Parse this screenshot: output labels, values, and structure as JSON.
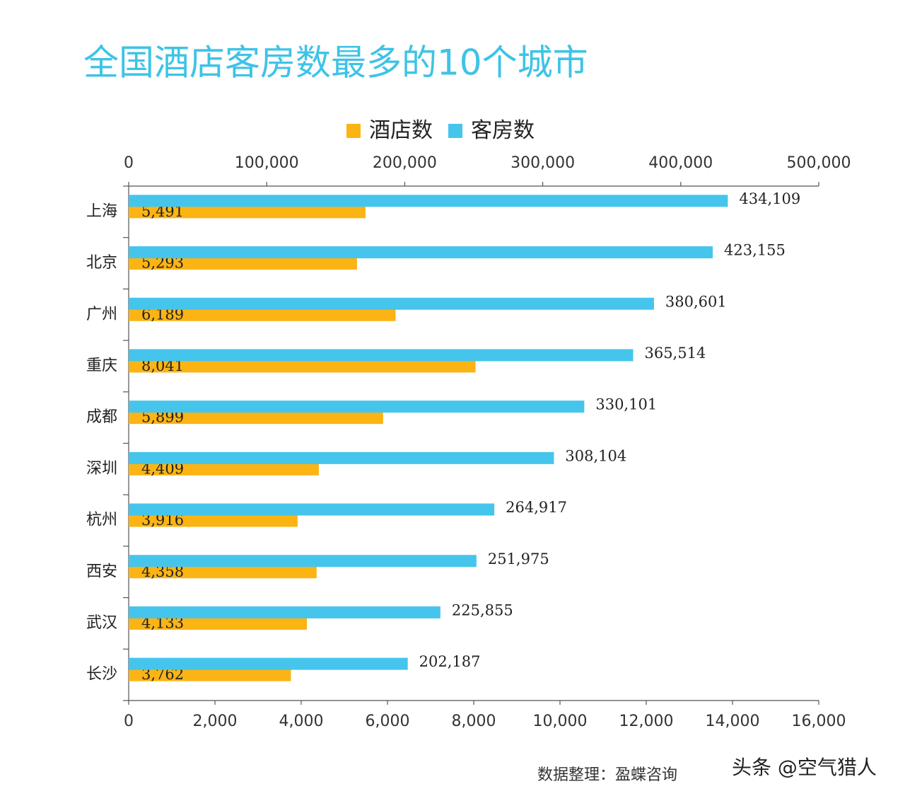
{
  "chart_data": {
    "type": "bar",
    "orientation": "horizontal",
    "title": "全国酒店客房数最多的10个城市",
    "categories": [
      "上海",
      "北京",
      "广州",
      "重庆",
      "成都",
      "深圳",
      "杭州",
      "西安",
      "武汉",
      "长沙"
    ],
    "series": [
      {
        "name": "酒店数",
        "color": "#fbb414",
        "axis": "x",
        "values": [
          5491,
          5293,
          6189,
          8041,
          5899,
          4409,
          3916,
          4358,
          4133,
          3762
        ],
        "value_labels": [
          "5,491",
          "5,293",
          "6,189",
          "8,041",
          "5,899",
          "4,409",
          "3,916",
          "4,358",
          "4,133",
          "3,762"
        ]
      },
      {
        "name": "客房数",
        "color": "#45c5ec",
        "axis": "x2",
        "values": [
          434109,
          423155,
          380601,
          365514,
          330101,
          308104,
          264917,
          251975,
          225855,
          202187
        ],
        "value_labels": [
          "434,109",
          "423,155",
          "380,601",
          "365,514",
          "330,101",
          "308,104",
          "264,917",
          "251,975",
          "225,855",
          "202,187"
        ]
      }
    ],
    "xlim": [
      0,
      16000
    ],
    "xticks": [
      0,
      {
        "value": 2000,
        "label": "2,000"
      },
      {
        "value": 4000,
        "label": "4,000"
      },
      {
        "value": 6000,
        "label": "6,000"
      },
      {
        "value": 8000,
        "label": "8,000"
      },
      {
        "value": 10000,
        "label": "10,000"
      },
      {
        "value": 12000,
        "label": "12,000"
      },
      {
        "value": 14000,
        "label": "14,000"
      },
      {
        "value": 16000,
        "label": "16,000"
      }
    ],
    "x2lim": [
      0,
      500000
    ],
    "x2ticks": [
      0,
      {
        "value": 100000,
        "label": "100,000"
      },
      {
        "value": 200000,
        "label": "200,000"
      },
      {
        "value": 300000,
        "label": "300,000"
      },
      {
        "value": 400000,
        "label": "400,000"
      },
      {
        "value": 500000,
        "label": "500,000"
      }
    ],
    "legend": "top",
    "source": "数据整理：盈蝶咨询",
    "watermark": "头条 @空气猎人"
  }
}
